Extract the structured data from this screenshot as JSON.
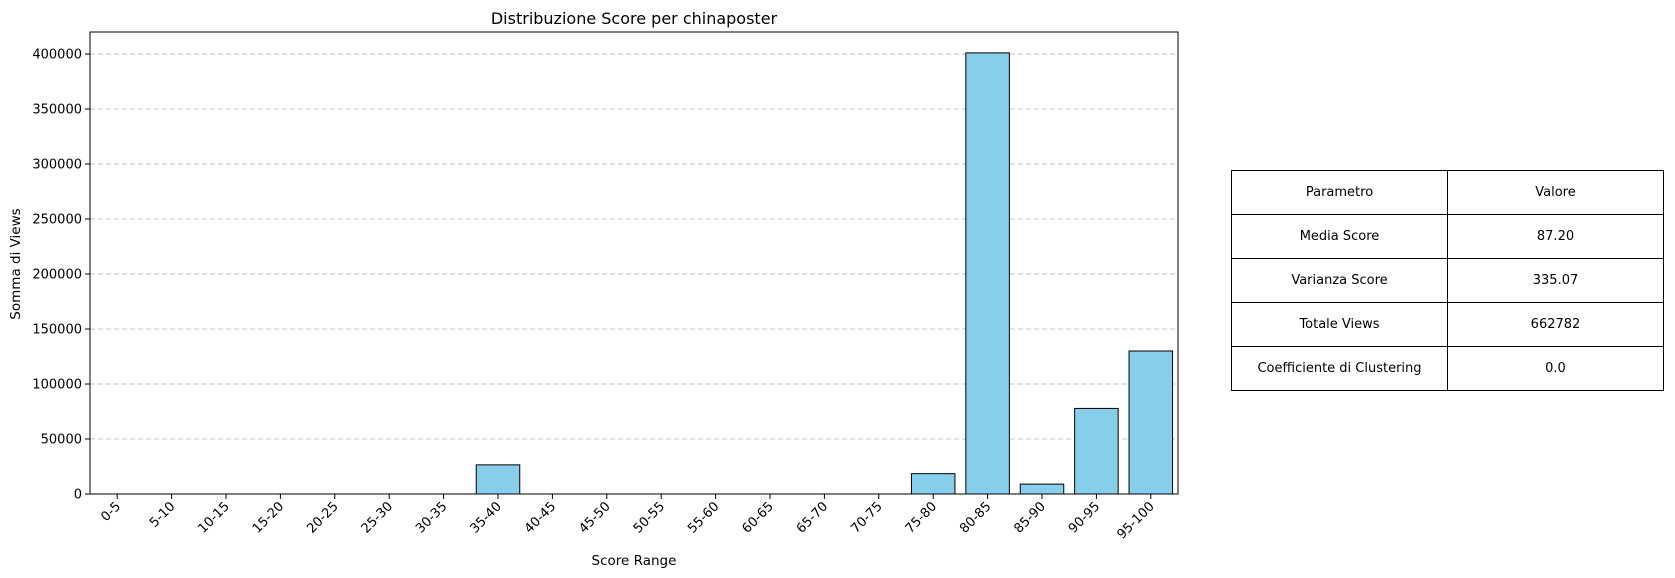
{
  "chart_data": {
    "type": "bar",
    "title": "Distribuzione Score per chinaposter",
    "xlabel": "Score Range",
    "ylabel": "Somma di Views",
    "categories": [
      "0-5",
      "5-10",
      "10-15",
      "15-20",
      "20-25",
      "25-30",
      "30-35",
      "35-40",
      "40-45",
      "45-50",
      "50-55",
      "55-60",
      "60-65",
      "65-70",
      "70-75",
      "75-80",
      "80-85",
      "85-90",
      "90-95",
      "95-100"
    ],
    "values": [
      0,
      0,
      0,
      0,
      0,
      0,
      0,
      26500,
      0,
      0,
      0,
      0,
      0,
      0,
      0,
      18500,
      401000,
      9000,
      77800,
      130000
    ],
    "ylim": [
      0,
      420000
    ],
    "yticks": [
      0,
      50000,
      100000,
      150000,
      200000,
      250000,
      300000,
      350000,
      400000
    ],
    "grid": "y-dashed",
    "bar_color": "#87ceeb",
    "edge_color": "#000000"
  },
  "table": {
    "header": [
      "Parametro",
      "Valore"
    ],
    "rows": [
      [
        "Media Score",
        "87.20"
      ],
      [
        "Varianza Score",
        "335.07"
      ],
      [
        "Totale Views",
        "662782"
      ],
      [
        "Coefficiente di Clustering",
        "0.0"
      ]
    ]
  }
}
